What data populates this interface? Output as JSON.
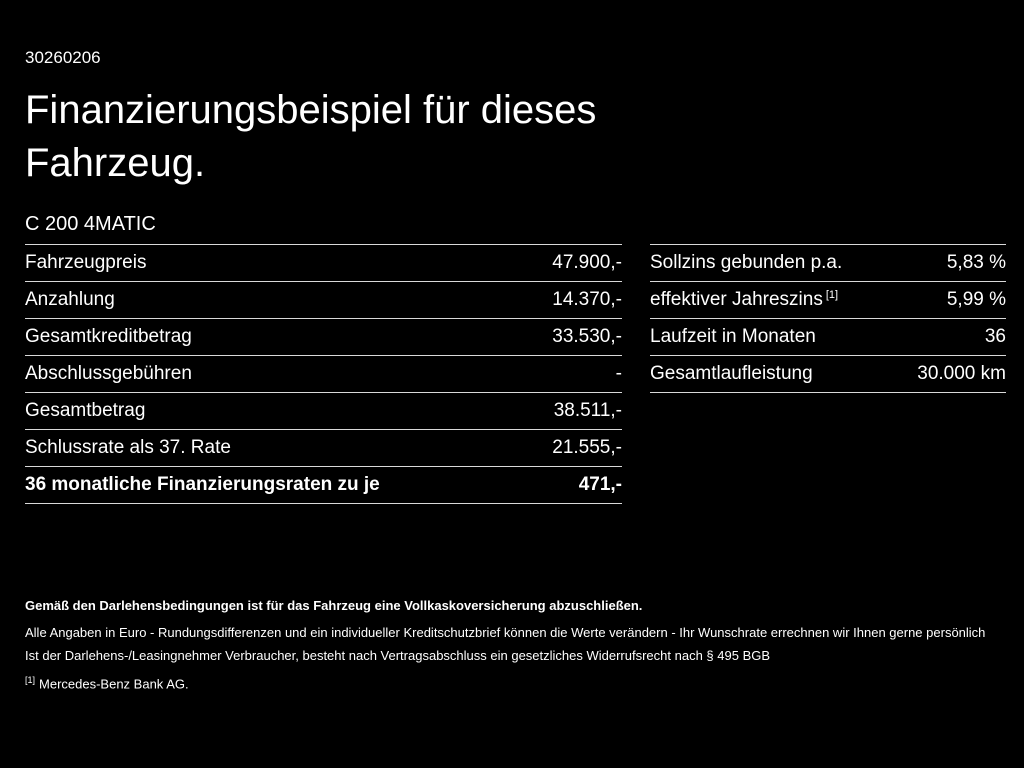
{
  "page": {
    "id_number": "30260206",
    "title_line1": "Finanzierungsbeispiel für dieses",
    "title_line2": "Fahrzeug.",
    "model": "C 200 4MATIC"
  },
  "left_table": {
    "rows": [
      {
        "label": "Fahrzeugpreis",
        "value": "47.900,-"
      },
      {
        "label": "Anzahlung",
        "value": "14.370,-"
      },
      {
        "label": "Gesamtkreditbetrag",
        "value": "33.530,-"
      },
      {
        "label": "Abschlussgebühren",
        "value": "-"
      },
      {
        "label": "Gesamtbetrag",
        "value": "38.511,-"
      },
      {
        "label": "Schlussrate als 37. Rate",
        "value": "21.555,-"
      },
      {
        "label": "36 monatliche Finanzierungsraten zu je",
        "value": "471,-"
      }
    ]
  },
  "right_table": {
    "rows": [
      {
        "label": "Sollzins gebunden p.a.",
        "sup": "",
        "value": "5,83 %"
      },
      {
        "label": "effektiver Jahreszins",
        "sup": "[1]",
        "value": "5,99 %"
      },
      {
        "label": "Laufzeit in Monaten",
        "sup": "",
        "value": "36"
      },
      {
        "label": "Gesamtlaufleistung",
        "sup": "",
        "value": "30.000 km"
      }
    ]
  },
  "footer": {
    "bold_note": "Gemäß den Darlehensbedingungen ist für das Fahrzeug eine Vollkaskoversicherung abzuschließen.",
    "note1": "Alle Angaben in Euro - Rundungsdifferenzen und ein individueller Kreditschutzbrief können die Werte verändern - Ihr Wunschrate errechnen wir Ihnen gerne persönlich",
    "note2": "Ist der Darlehens-/Leasingnehmer Verbraucher, besteht nach Vertragsabschluss ein gesetzliches Widerrufsrecht nach § 495 BGB",
    "footnote_marker": "[1]",
    "footnote_text": "Mercedes-Benz Bank AG."
  }
}
